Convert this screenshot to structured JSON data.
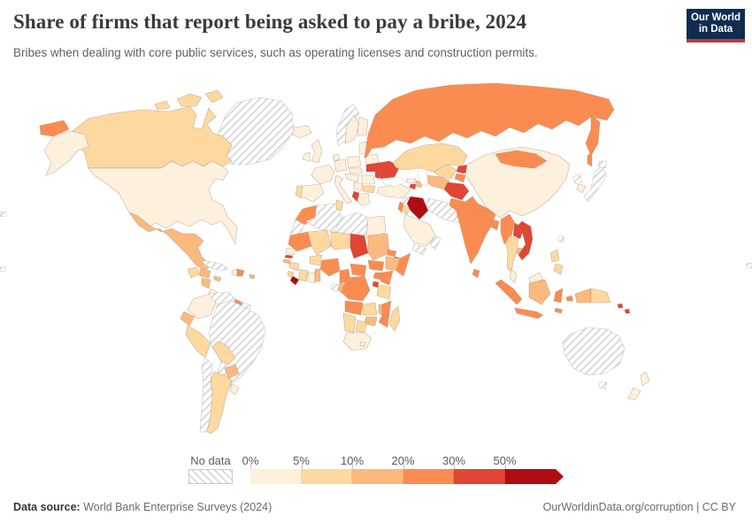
{
  "header": {
    "title": "Share of firms that report being asked to pay a bribe, 2024",
    "subtitle": "Bribes when dealing with core public services, such as operating licenses and construction permits."
  },
  "logo": {
    "line1": "Our World",
    "line2": "in Data",
    "bg": "#102d50",
    "stripe": "#c0353f"
  },
  "legend": {
    "no_data_label": "No data",
    "ticks": [
      "0%",
      "5%",
      "10%",
      "20%",
      "30%",
      "50%"
    ],
    "bins": [
      {
        "key": "b0",
        "range": "0-5%",
        "color": "#fdf0dc"
      },
      {
        "key": "b1",
        "range": "5-10%",
        "color": "#fdd9a0"
      },
      {
        "key": "b2",
        "range": "10-20%",
        "color": "#fcb97e"
      },
      {
        "key": "b3",
        "range": "20-30%",
        "color": "#fb8c51"
      },
      {
        "key": "b4",
        "range": "30-50%",
        "color": "#e04633"
      },
      {
        "key": "b5",
        "range": "50%+",
        "color": "#b00d12"
      }
    ]
  },
  "footer": {
    "source_label": "Data source:",
    "source_text": " World Bank Enterprise Surveys (2024)",
    "credit": "OurWorldinData.org/corruption | CC BY"
  },
  "map": {
    "border_color": "#a38f7e",
    "no_data_stroke": "#c6c6c6",
    "regions": {
      "greenland": "nd",
      "canada": "b1",
      "canada-islands-1": "b1",
      "canada-islands-2": "b1",
      "canada-islands-3": "b1",
      "alaska": "b0",
      "chukotka": "b3",
      "united-states": "b0",
      "mexico": "b2",
      "guatemala": "b1",
      "honduras": "b2",
      "nicaragua": "b2",
      "costa-rica": "b0",
      "panama": "b1",
      "cuba": "nd",
      "jamaica": "b2",
      "haiti": "b0",
      "dominican-republic": "b3",
      "puerto-rico": "b2",
      "colombia": "b0",
      "venezuela": "nd",
      "guyana": "b3",
      "suriname": "nd",
      "ecuador": "b2",
      "peru": "b1",
      "brazil": "nd",
      "bolivia": "b1",
      "paraguay": "b2",
      "chile": "nd",
      "argentina": "b1",
      "uruguay": "b0",
      "iceland": "b0",
      "uk": "b0",
      "ireland": "b0",
      "norway": "nd",
      "sweden": "b0",
      "finland": "b0",
      "denmark": "b0",
      "baltics": "b0",
      "belarus": "b0",
      "poland": "b0",
      "germany": "b0",
      "france": "b0",
      "spain": "b0",
      "portugal": "b1",
      "italy": "b0",
      "czechia-slovakia": "b0",
      "austria-hungary": "b0",
      "romania": "b0",
      "moldova": "b4",
      "ukraine": "b4",
      "serbia": "b0",
      "albania": "b4",
      "greece": "b0",
      "bulgaria": "b1",
      "turkey": "b0",
      "georgia": "b0",
      "armenia": "b4",
      "azerbaijan": "b2",
      "syria": "nd",
      "israel-lebanon": "b3",
      "jordan": "b1",
      "iraq": "b5",
      "saudi-arabia": "b0",
      "yemen": "nd",
      "oman": "nd",
      "iran": "nd",
      "russia": "b3",
      "russia-kamchatka": "b3",
      "russia-sakhalin": "b3",
      "kazakhstan": "b1",
      "uzbekistan": "b1",
      "turkmenistan": "b2",
      "kyrgyzstan": "b4",
      "tajikistan": "b3",
      "afghanistan": "b4",
      "pakistan": "b3",
      "india": "b3",
      "nepal": "b3",
      "bangladesh": "b3",
      "sri-lanka": "b3",
      "china": "b0",
      "mongolia": "b3",
      "myanmar": "b3",
      "thailand": "b1",
      "laos": "b4",
      "cambodia": "b2",
      "vietnam": "b4",
      "malaysia-peninsula": "b0",
      "sumatra": "b3",
      "java": "b3",
      "borneo-indonesia": "b2",
      "borneo-malaysia": "b0",
      "sulawesi": "b3",
      "philippines-north": "b1",
      "philippines-south": "b1",
      "taiwan": "nd",
      "north-korea": "nd",
      "south-korea": "b0",
      "japan": "nd",
      "japan-hokkaido": "nd",
      "papua-indonesia": "b2",
      "papua-new-guinea": "b1",
      "solomon-1": "b4",
      "solomon-2": "b4",
      "maluku": "b3",
      "lesser-sunda": "b3",
      "australia": "nd",
      "tasmania": "nd",
      "new-zealand-north": "b0",
      "new-zealand-south": "b0",
      "morocco": "b3",
      "western-sahara": "nd",
      "algeria": "nd",
      "tunisia": "b1",
      "libya": "nd",
      "egypt": "b0",
      "mauritania": "b3",
      "mali": "b1",
      "niger": "b1",
      "chad": "b4",
      "sudan": "b2",
      "eritrea": "b3",
      "djibouti": "b4",
      "senegal": "b0",
      "gambia": "b4",
      "guinea-bissau": "b2",
      "guinea": "b1",
      "sierra-leone": "b1",
      "liberia": "b5",
      "ivory-coast": "b1",
      "ghana": "b0",
      "togo-benin": "b2",
      "burkina-faso": "b1",
      "nigeria": "b3",
      "cameroon": "b3",
      "central-african-republic": "b3",
      "south-sudan": "b3",
      "ethiopia": "b2",
      "somalia": "b3",
      "uganda": "b3",
      "kenya": "b3",
      "rwanda-burundi": "b4",
      "gabon": "nd",
      "congo": "b2",
      "drc": "b3",
      "tanzania": "b1",
      "angola": "b3",
      "zambia": "b1",
      "malawi": "b2",
      "mozambique": "b3",
      "zimbabwe": "b2",
      "botswana": "b1",
      "namibia": "b1",
      "south-africa": "b0",
      "lesotho": "b0",
      "madagascar": "b1",
      "edge-left-1": "nd",
      "edge-left-2": "nd",
      "edge-right-1": "nd"
    }
  },
  "chart_data": {
    "type": "choropleth",
    "title": "Share of firms that report being asked to pay a bribe, 2024",
    "unit": "% of firms",
    "legend_bins": [
      {
        "range": "0-5%",
        "color": "#fdf0dc"
      },
      {
        "range": "5-10%",
        "color": "#fdd9a0"
      },
      {
        "range": "10-20%",
        "color": "#fcb97e"
      },
      {
        "range": "20-30%",
        "color": "#fb8c51"
      },
      {
        "range": "30-50%",
        "color": "#e04633"
      },
      {
        "range": "50%+",
        "color": "#b00d12"
      }
    ],
    "no_data_style": "diagonal-hatch",
    "notable_values": {
      "50%+": [
        "Iraq",
        "Liberia"
      ],
      "30-50%": [
        "Ukraine",
        "Moldova",
        "Afghanistan",
        "Kyrgyzstan",
        "Chad",
        "Vietnam",
        "Laos"
      ],
      "20-30%": [
        "Russia",
        "India",
        "Pakistan",
        "Nigeria",
        "DRC",
        "Kenya",
        "Morocco",
        "Mongolia"
      ],
      "0-5%": [
        "United States",
        "China",
        "France",
        "Germany",
        "Spain",
        "South Africa",
        "Egypt"
      ],
      "no_data": [
        "Brazil",
        "Australia",
        "Greenland",
        "Algeria",
        "Libya",
        "Iran",
        "Saudi-peninsula states",
        "Japan",
        "Venezuela",
        "Chile",
        "Norway"
      ]
    }
  }
}
